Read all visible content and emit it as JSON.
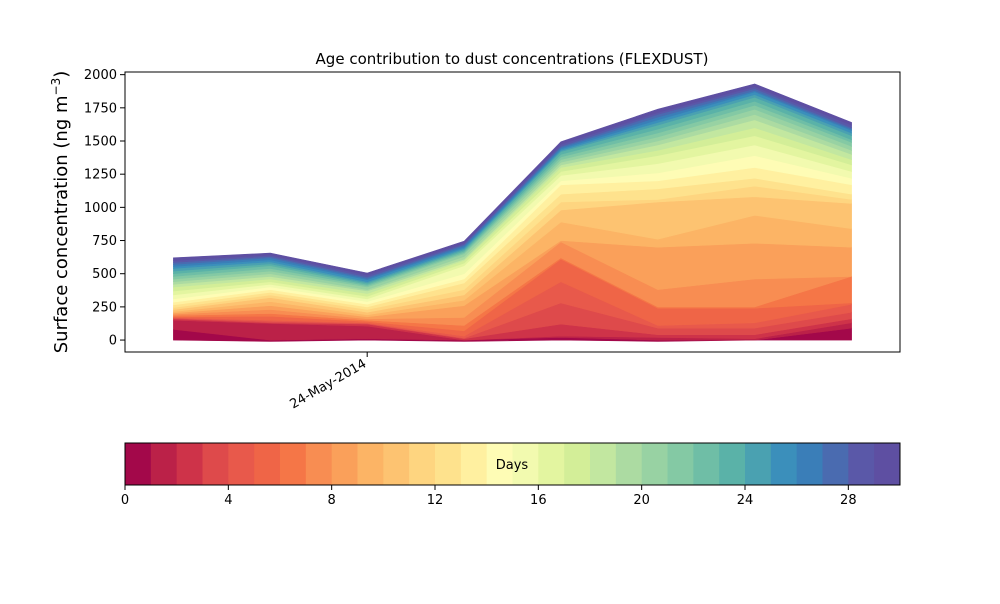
{
  "chart_data": [
    {
      "type": "area",
      "title": "Age contribution to dust concentrations (FLEXDUST)",
      "ylabel": "Surface concentration (ng m",
      "ylabel_superscript": "−3",
      "ylabel_suffix": ")",
      "xlabel": "",
      "ylim": [
        -90,
        2020
      ],
      "yticks": [
        "0",
        "250",
        "500",
        "750",
        "1000",
        "1250",
        "1500",
        "1750",
        "2000"
      ],
      "ytick_values": [
        0,
        250,
        500,
        750,
        1000,
        1250,
        1500,
        1750,
        2000
      ],
      "x_date_tick": {
        "label": "24-May-2014",
        "x": 0.8
      },
      "xlim": [
        -0.2,
        3.0
      ],
      "x": [
        0,
        0.4,
        0.8,
        1.2,
        1.6,
        2.0,
        2.4,
        2.8
      ],
      "grid": false,
      "stack_baseline": [
        0,
        -10,
        0,
        -10,
        0,
        -10,
        0,
        0
      ],
      "stacked_totals": [
        [
          80,
          0,
          10,
          0,
          20,
          0,
          0,
          90
        ],
        [
          150,
          125,
          105,
          0,
          30,
          20,
          10,
          130
        ],
        [
          160,
          130,
          120,
          10,
          120,
          40,
          40,
          160
        ],
        [
          165,
          140,
          125,
          15,
          280,
          90,
          90,
          210
        ],
        [
          170,
          150,
          130,
          30,
          440,
          110,
          130,
          270
        ],
        [
          175,
          180,
          140,
          70,
          610,
          240,
          240,
          280
        ],
        [
          185,
          200,
          150,
          110,
          620,
          250,
          250,
          480
        ],
        [
          195,
          230,
          160,
          170,
          740,
          380,
          460,
          480
        ],
        [
          205,
          260,
          175,
          260,
          750,
          700,
          730,
          700
        ],
        [
          215,
          290,
          190,
          300,
          890,
          760,
          940,
          840
        ],
        [
          230,
          320,
          210,
          340,
          980,
          1040,
          1080,
          1030
        ],
        [
          245,
          340,
          230,
          380,
          1040,
          1060,
          1160,
          1060
        ],
        [
          265,
          360,
          250,
          430,
          1100,
          1140,
          1220,
          1100
        ],
        [
          285,
          380,
          270,
          460,
          1170,
          1200,
          1300,
          1170
        ],
        [
          310,
          400,
          290,
          500,
          1200,
          1260,
          1390,
          1220
        ],
        [
          340,
          420,
          310,
          560,
          1240,
          1330,
          1470,
          1270
        ],
        [
          370,
          440,
          330,
          580,
          1270,
          1390,
          1540,
          1320
        ],
        [
          400,
          460,
          350,
          600,
          1300,
          1430,
          1600,
          1360
        ],
        [
          420,
          480,
          370,
          610,
          1320,
          1470,
          1660,
          1400
        ],
        [
          440,
          500,
          380,
          630,
          1340,
          1500,
          1700,
          1430
        ],
        [
          460,
          520,
          400,
          650,
          1360,
          1530,
          1740,
          1460
        ],
        [
          480,
          540,
          410,
          660,
          1380,
          1560,
          1770,
          1490
        ],
        [
          500,
          560,
          420,
          670,
          1400,
          1590,
          1800,
          1510
        ],
        [
          520,
          575,
          430,
          680,
          1420,
          1620,
          1830,
          1540
        ],
        [
          540,
          590,
          440,
          690,
          1430,
          1640,
          1850,
          1560
        ],
        [
          555,
          605,
          455,
          700,
          1440,
          1660,
          1870,
          1580
        ],
        [
          570,
          620,
          465,
          710,
          1450,
          1680,
          1880,
          1590
        ],
        [
          585,
          630,
          475,
          720,
          1460,
          1700,
          1895,
          1600
        ],
        [
          600,
          640,
          490,
          730,
          1475,
          1715,
          1910,
          1620
        ],
        [
          620,
          655,
          505,
          745,
          1495,
          1740,
          1930,
          1640
        ]
      ]
    },
    {
      "type": "colorbar",
      "label": "Days",
      "range": [
        0,
        30
      ],
      "ticks": [
        0,
        4,
        8,
        12,
        16,
        20,
        24,
        28
      ],
      "tick_labels": [
        "0",
        "4",
        "8",
        "12",
        "16",
        "20",
        "24",
        "28"
      ],
      "colors": [
        "#a3084a",
        "#bb2148",
        "#ce3349",
        "#de4a4b",
        "#e8594b",
        "#ef6547",
        "#f57647",
        "#f88d52",
        "#faa05a",
        "#fcb465",
        "#fdc371",
        "#fed580",
        "#fee28d",
        "#fff0a0",
        "#fefcb5",
        "#f2faaf",
        "#e3f5a0",
        "#d3ee98",
        "#c2e7a0",
        "#acdba2",
        "#98d2a3",
        "#84c9a4",
        "#6fbea6",
        "#5ab2a8",
        "#4aa1b1",
        "#3b8fbb",
        "#3a7eb8",
        "#4a6bb0",
        "#5a58a8",
        "#5e4fa2"
      ]
    }
  ]
}
